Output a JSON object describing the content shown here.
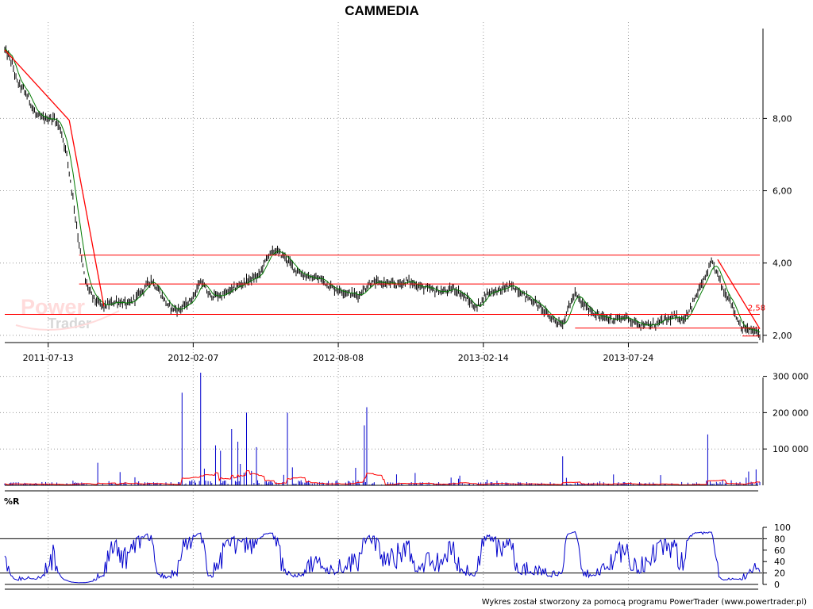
{
  "chart_data": [
    {
      "type": "candlestick",
      "title": "CAMMEDIA",
      "y_ticks": [
        2.0,
        4.0,
        6.0,
        8.0
      ],
      "y_tick_labels": [
        "2,00",
        "4,00",
        "6,00",
        "8,00"
      ],
      "ylim": [
        1.8,
        10.4
      ],
      "x_tick_labels": [
        "2011-07-13",
        "2012-02-07",
        "2012-08-08",
        "2013-02-14",
        "2013-07-24"
      ],
      "x_tick_indices": [
        35,
        152,
        269,
        386,
        503
      ],
      "n_bars": 610,
      "grid": true,
      "price_anchors": [
        [
          0,
          9.9
        ],
        [
          5,
          9.6
        ],
        [
          10,
          9.0
        ],
        [
          15,
          8.8
        ],
        [
          20,
          8.5
        ],
        [
          25,
          8.1
        ],
        [
          30,
          8.0
        ],
        [
          40,
          8.0
        ],
        [
          45,
          7.7
        ],
        [
          50,
          7.0
        ],
        [
          55,
          5.8
        ],
        [
          60,
          4.5
        ],
        [
          65,
          3.5
        ],
        [
          70,
          3.1
        ],
        [
          75,
          2.9
        ],
        [
          80,
          2.8
        ],
        [
          90,
          2.95
        ],
        [
          100,
          2.85
        ],
        [
          110,
          3.2
        ],
        [
          118,
          3.55
        ],
        [
          125,
          3.2
        ],
        [
          132,
          2.8
        ],
        [
          140,
          2.7
        ],
        [
          150,
          2.95
        ],
        [
          158,
          3.5
        ],
        [
          165,
          3.1
        ],
        [
          175,
          3.1
        ],
        [
          185,
          3.3
        ],
        [
          195,
          3.5
        ],
        [
          205,
          3.65
        ],
        [
          212,
          4.2
        ],
        [
          218,
          4.35
        ],
        [
          225,
          4.2
        ],
        [
          235,
          3.8
        ],
        [
          245,
          3.6
        ],
        [
          255,
          3.55
        ],
        [
          265,
          3.3
        ],
        [
          275,
          3.2
        ],
        [
          285,
          3.1
        ],
        [
          295,
          3.45
        ],
        [
          305,
          3.45
        ],
        [
          315,
          3.4
        ],
        [
          325,
          3.5
        ],
        [
          335,
          3.35
        ],
        [
          345,
          3.25
        ],
        [
          355,
          3.2
        ],
        [
          362,
          3.3
        ],
        [
          370,
          3.1
        ],
        [
          380,
          2.75
        ],
        [
          390,
          3.2
        ],
        [
          400,
          3.25
        ],
        [
          405,
          3.35
        ],
        [
          410,
          3.35
        ],
        [
          420,
          3.1
        ],
        [
          430,
          2.85
        ],
        [
          440,
          2.5
        ],
        [
          450,
          2.3
        ],
        [
          455,
          2.8
        ],
        [
          460,
          3.15
        ],
        [
          465,
          2.9
        ],
        [
          470,
          2.75
        ],
        [
          480,
          2.5
        ],
        [
          490,
          2.45
        ],
        [
          500,
          2.5
        ],
        [
          510,
          2.35
        ],
        [
          520,
          2.25
        ],
        [
          530,
          2.4
        ],
        [
          540,
          2.5
        ],
        [
          548,
          2.45
        ],
        [
          555,
          2.9
        ],
        [
          565,
          3.6
        ],
        [
          570,
          4.0
        ],
        [
          575,
          3.7
        ],
        [
          580,
          3.2
        ],
        [
          585,
          3.0
        ],
        [
          590,
          2.5
        ],
        [
          595,
          2.2
        ],
        [
          600,
          2.15
        ],
        [
          605,
          2.1
        ],
        [
          609,
          2.05
        ]
      ],
      "trend_lines": [
        {
          "from": [
            0,
            9.9
          ],
          "to": [
            52,
            7.95
          ]
        },
        {
          "from": [
            52,
            7.95
          ],
          "to": [
            80,
            2.8
          ]
        },
        {
          "from": [
            575,
            4.1
          ],
          "to": [
            609,
            2.18
          ]
        }
      ],
      "horizontal_levels": [
        {
          "value": 4.22,
          "from": 60,
          "to": 609
        },
        {
          "value": 3.42,
          "from": 60,
          "to": 609
        },
        {
          "value": 2.58,
          "from": 0,
          "to": 609
        },
        {
          "value": 2.2,
          "from": 460,
          "to": 609
        },
        {
          "value": 1.98,
          "from": 595,
          "to": 609
        }
      ],
      "annotation": {
        "text": "2,58",
        "index": 598,
        "value": 2.58
      },
      "moving_average_color": "#007a00",
      "candle_color": "#000000",
      "line_color": "#ff0000"
    },
    {
      "type": "bar",
      "name": "volume",
      "y_ticks": [
        100000,
        200000,
        300000
      ],
      "y_tick_labels": [
        "100 000",
        "200 000",
        "300 000"
      ],
      "ylim": [
        0,
        310000
      ],
      "spikes": [
        [
          75,
          62000
        ],
        [
          143,
          255000
        ],
        [
          158,
          310000
        ],
        [
          170,
          110000
        ],
        [
          174,
          95000
        ],
        [
          183,
          155000
        ],
        [
          188,
          120000
        ],
        [
          195,
          200000
        ],
        [
          203,
          105000
        ],
        [
          228,
          200000
        ],
        [
          290,
          165000
        ],
        [
          292,
          215000
        ],
        [
          450,
          80000
        ],
        [
          567,
          140000
        ],
        [
          600,
          38000
        ]
      ],
      "bar_color": "#0000cc",
      "average_color": "#ff0000"
    },
    {
      "type": "line",
      "name": "%R",
      "label": "%R",
      "y_ticks": [
        0,
        20,
        40,
        60,
        80,
        100
      ],
      "y_tick_labels": [
        "0",
        "20",
        "40",
        "60",
        "80",
        "100"
      ],
      "ylim": [
        0,
        100
      ],
      "reference_lines": [
        20,
        80
      ],
      "line_color": "#0000cc"
    }
  ],
  "footer": "Wykres został stworzony za pomocą programu PowerTrader (www.powertrader.pl)",
  "watermark": {
    "line1": "Power",
    "line2": "Trader"
  }
}
